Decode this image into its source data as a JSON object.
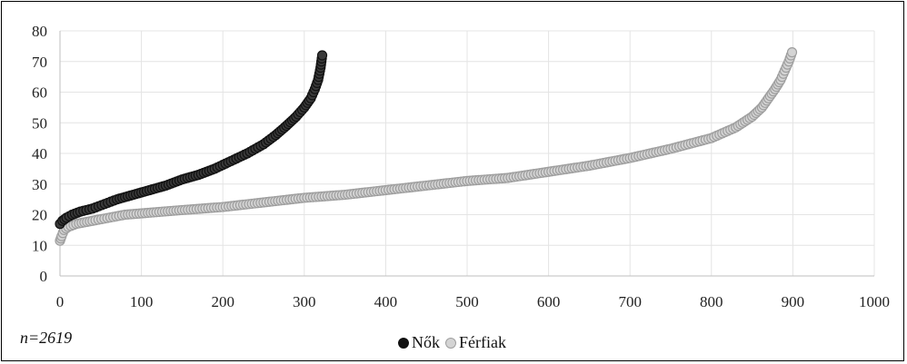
{
  "chart_data": {
    "type": "scatter",
    "note": "n=2619",
    "xlim": [
      0,
      1000
    ],
    "ylim": [
      0,
      80
    ],
    "x_ticks": [
      "0",
      "100",
      "200",
      "300",
      "400",
      "500",
      "600",
      "700",
      "800",
      "900",
      "1000"
    ],
    "y_ticks": [
      "0",
      "10",
      "20",
      "30",
      "40",
      "50",
      "60",
      "70",
      "80"
    ],
    "grid": true,
    "legend_position": "bottom",
    "series": [
      {
        "name": "Nők",
        "color": "#3a3a3a",
        "stroke": "#111111",
        "points": [
          [
            0,
            17
          ],
          [
            3,
            18
          ],
          [
            8,
            19
          ],
          [
            15,
            20
          ],
          [
            25,
            21
          ],
          [
            40,
            22
          ],
          [
            55,
            23.5
          ],
          [
            70,
            25
          ],
          [
            90,
            26.5
          ],
          [
            110,
            28
          ],
          [
            130,
            29.5
          ],
          [
            150,
            31.5
          ],
          [
            170,
            33
          ],
          [
            190,
            35
          ],
          [
            210,
            37.5
          ],
          [
            230,
            40
          ],
          [
            250,
            43
          ],
          [
            265,
            46
          ],
          [
            278,
            49
          ],
          [
            290,
            52
          ],
          [
            300,
            55
          ],
          [
            308,
            58
          ],
          [
            313,
            61
          ],
          [
            317,
            64
          ],
          [
            320,
            68
          ],
          [
            322,
            72
          ]
        ]
      },
      {
        "name": "Férfiak",
        "color": "#d4d4d4",
        "stroke": "#9e9e9e",
        "points": [
          [
            0,
            11.5
          ],
          [
            2,
            13
          ],
          [
            5,
            15
          ],
          [
            10,
            16
          ],
          [
            20,
            17
          ],
          [
            40,
            18
          ],
          [
            80,
            20
          ],
          [
            150,
            21.5
          ],
          [
            200,
            22.5
          ],
          [
            250,
            24
          ],
          [
            300,
            25.5
          ],
          [
            350,
            26.5
          ],
          [
            400,
            28
          ],
          [
            450,
            29.5
          ],
          [
            500,
            31
          ],
          [
            550,
            32
          ],
          [
            600,
            34
          ],
          [
            650,
            36
          ],
          [
            700,
            38.5
          ],
          [
            750,
            41.5
          ],
          [
            800,
            45
          ],
          [
            830,
            48.5
          ],
          [
            850,
            52
          ],
          [
            862,
            55
          ],
          [
            870,
            58
          ],
          [
            878,
            61
          ],
          [
            885,
            64
          ],
          [
            890,
            67
          ],
          [
            895,
            70
          ],
          [
            899,
            73
          ]
        ]
      }
    ]
  }
}
